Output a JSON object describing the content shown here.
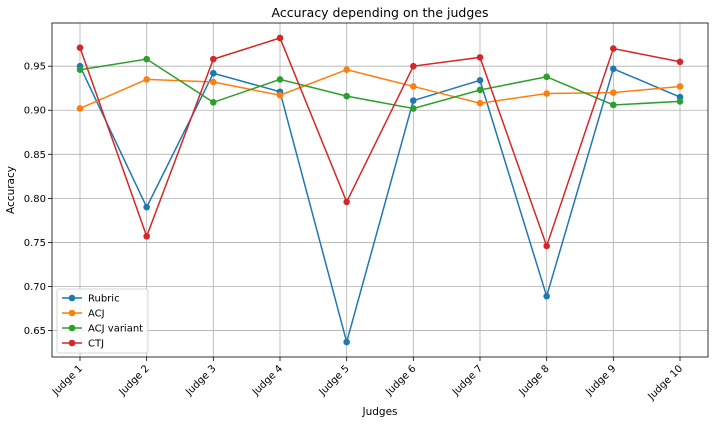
{
  "chart_data": {
    "type": "line",
    "title": "Accuracy depending on the judges",
    "xlabel": "Judges",
    "ylabel": "Accuracy",
    "categories": [
      "Judge 1",
      "Judge 2",
      "Judge 3",
      "Judge 4",
      "Judge 5",
      "Judge 6",
      "Judge 7",
      "Judge 8",
      "Judge 9",
      "Judge 10"
    ],
    "ylim": [
      0.62,
      0.999
    ],
    "yticks": [
      0.65,
      0.7,
      0.75,
      0.8,
      0.85,
      0.9,
      0.95
    ],
    "ytick_labels": [
      "0.65",
      "0.70",
      "0.75",
      "0.80",
      "0.85",
      "0.90",
      "0.95"
    ],
    "grid": true,
    "legend_position": "lower-left",
    "series": [
      {
        "name": "Rubric",
        "color": "#1f77b4",
        "values": [
          0.95,
          0.79,
          0.942,
          0.921,
          0.637,
          0.911,
          0.934,
          0.689,
          0.947,
          0.915
        ]
      },
      {
        "name": "ACJ",
        "color": "#ff7f0e",
        "values": [
          0.902,
          0.935,
          0.932,
          0.917,
          0.946,
          0.927,
          0.908,
          0.919,
          0.92,
          0.927
        ]
      },
      {
        "name": "ACJ variant",
        "color": "#2ca02c",
        "values": [
          0.946,
          0.958,
          0.909,
          0.935,
          0.916,
          0.902,
          0.923,
          0.938,
          0.906,
          0.91
        ]
      },
      {
        "name": "CTJ",
        "color": "#d62728",
        "values": [
          0.971,
          0.757,
          0.958,
          0.982,
          0.796,
          0.95,
          0.96,
          0.746,
          0.97,
          0.955
        ]
      }
    ]
  }
}
